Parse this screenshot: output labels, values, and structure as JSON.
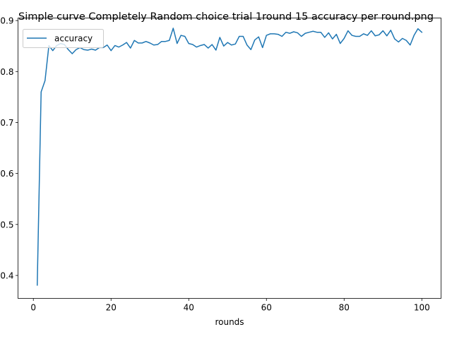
{
  "chart_data": {
    "type": "line",
    "title": "Simple curve Completely Random choice trial 1round 15 accuracy per round.png",
    "xlabel": "rounds",
    "ylabel": "",
    "xlim": [
      -3.95,
      104.95
    ],
    "ylim": [
      0.355,
      0.905
    ],
    "xticks": [
      0,
      20,
      40,
      60,
      80,
      100
    ],
    "yticks": [
      0.4,
      0.5,
      0.6,
      0.7,
      0.8,
      0.9
    ],
    "xtick_labels": [
      "0",
      "20",
      "40",
      "60",
      "80",
      "100"
    ],
    "ytick_labels": [
      "0.4",
      "0.5",
      "0.6",
      "0.7",
      "0.8",
      "0.9"
    ],
    "grid": false,
    "legend_position": "upper-left",
    "colors": {
      "series": "#1f77b4",
      "axes": "#000000"
    },
    "series": [
      {
        "name": "accuracy",
        "x": [
          1,
          2,
          3,
          4,
          5,
          6,
          7,
          8,
          9,
          10,
          11,
          12,
          13,
          14,
          15,
          16,
          17,
          18,
          19,
          20,
          21,
          22,
          23,
          24,
          25,
          26,
          27,
          28,
          29,
          30,
          31,
          32,
          33,
          34,
          35,
          36,
          37,
          38,
          39,
          40,
          41,
          42,
          43,
          44,
          45,
          46,
          47,
          48,
          49,
          50,
          51,
          52,
          53,
          54,
          55,
          56,
          57,
          58,
          59,
          60,
          61,
          62,
          63,
          64,
          65,
          66,
          67,
          68,
          69,
          70,
          71,
          72,
          73,
          74,
          75,
          76,
          77,
          78,
          79,
          80,
          81,
          82,
          83,
          84,
          85,
          86,
          87,
          88,
          89,
          90,
          91,
          92,
          93,
          94,
          95,
          96,
          97,
          98,
          99,
          100
        ],
        "values": [
          0.381,
          0.76,
          0.782,
          0.851,
          0.841,
          0.851,
          0.855,
          0.853,
          0.843,
          0.835,
          0.843,
          0.847,
          0.843,
          0.842,
          0.844,
          0.842,
          0.847,
          0.847,
          0.852,
          0.841,
          0.851,
          0.848,
          0.852,
          0.857,
          0.846,
          0.861,
          0.856,
          0.856,
          0.859,
          0.856,
          0.852,
          0.853,
          0.859,
          0.859,
          0.861,
          0.885,
          0.855,
          0.871,
          0.869,
          0.855,
          0.853,
          0.848,
          0.851,
          0.853,
          0.846,
          0.853,
          0.842,
          0.867,
          0.85,
          0.857,
          0.852,
          0.854,
          0.869,
          0.869,
          0.852,
          0.843,
          0.862,
          0.868,
          0.847,
          0.871,
          0.874,
          0.874,
          0.873,
          0.869,
          0.877,
          0.875,
          0.878,
          0.876,
          0.869,
          0.875,
          0.877,
          0.879,
          0.877,
          0.877,
          0.867,
          0.876,
          0.864,
          0.873,
          0.855,
          0.865,
          0.88,
          0.871,
          0.869,
          0.869,
          0.874,
          0.871,
          0.88,
          0.87,
          0.872,
          0.88,
          0.87,
          0.881,
          0.864,
          0.858,
          0.865,
          0.861,
          0.852,
          0.871,
          0.884,
          0.877
        ]
      }
    ]
  }
}
